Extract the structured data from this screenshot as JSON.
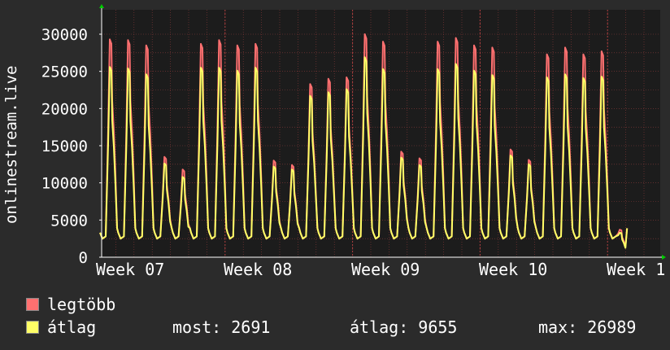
{
  "chart_data": {
    "type": "line",
    "ylabel": "onlinestream.live",
    "ylim": [
      0,
      30000
    ],
    "yticks": [
      "0",
      "5000",
      "10000",
      "15000",
      "20000",
      "25000",
      "30000"
    ],
    "ytick_values": [
      0,
      5000,
      10000,
      15000,
      20000,
      25000,
      30000
    ],
    "xtick_labels": [
      "Week 07",
      "Week 08",
      "Week 09",
      "Week 10",
      "Week 1"
    ],
    "days": 35,
    "grid": true,
    "series": [
      {
        "name": "legtöbb",
        "color": "#ff7070",
        "daily_peaks": [
          29300,
          29200,
          28500,
          13500,
          11800,
          28700,
          29200,
          28500,
          28700,
          13000,
          12400,
          23300,
          24000,
          24200,
          30000,
          29000,
          14200,
          13300,
          29000,
          29500,
          28500,
          28200,
          14500,
          13100,
          27300,
          28200,
          27300,
          27700,
          3700
        ]
      },
      {
        "name": "átlag",
        "color": "#ffff66",
        "daily_peaks": [
          25600,
          25400,
          24600,
          12600,
          10800,
          25500,
          25500,
          25100,
          25500,
          12200,
          11800,
          21700,
          22200,
          22600,
          26900,
          25300,
          13400,
          12400,
          25300,
          26000,
          25100,
          24500,
          13700,
          12500,
          24200,
          24600,
          24100,
          24300,
          3300
        ]
      }
    ]
  },
  "legend": {
    "max_label": "legtöbb",
    "avg_label": "átlag",
    "now": "most: 2691",
    "avg": "átlag: 9655",
    "max": "max: 26989"
  },
  "colors": {
    "background": "#2b2b2b",
    "plot_background": "#1c1c1c",
    "grid": "#8a3a3a",
    "axis": "#ffffff",
    "arrow": "#00cc00"
  }
}
